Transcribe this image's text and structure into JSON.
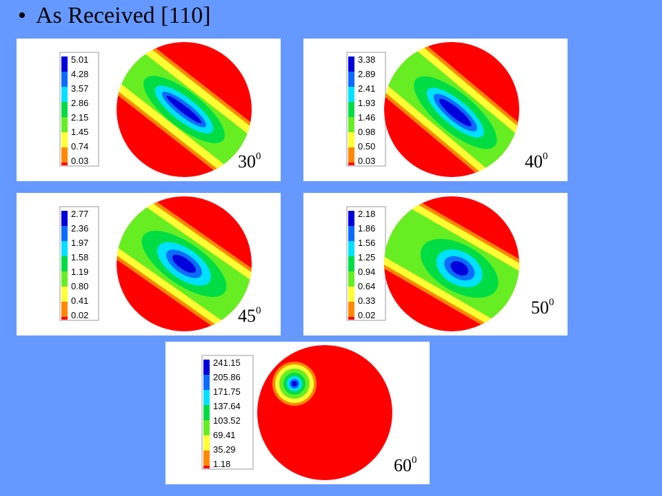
{
  "slide": {
    "bullet": "•",
    "title": "As Received [110]"
  },
  "colors": {
    "background": "#6699ff",
    "scale": [
      "#0000dd",
      "#0b6cff",
      "#00e0ff",
      "#00dd44",
      "#66ee22",
      "#ffff33",
      "#ff8800",
      "#ff0000"
    ]
  },
  "panels": [
    {
      "id": "p30",
      "legend": [
        "5.01",
        "4.28",
        "3.57",
        "2.86",
        "2.15",
        "1.45",
        "0.74",
        "0.03"
      ],
      "angle": "30",
      "angle_sup": "0"
    },
    {
      "id": "p40",
      "legend": [
        "3.38",
        "2.89",
        "2.41",
        "1.93",
        "1.46",
        "0.98",
        "0.50",
        "0.03"
      ],
      "angle": "40",
      "angle_sup": "0"
    },
    {
      "id": "p45",
      "legend": [
        "2.77",
        "2.36",
        "1.97",
        "1.58",
        "1.19",
        "0.80",
        "0.41",
        "0.02"
      ],
      "angle": "45",
      "angle_sup": "0"
    },
    {
      "id": "p50",
      "legend": [
        "2.18",
        "1.86",
        "1.56",
        "1.25",
        "0.94",
        "0.64",
        "0.33",
        "0.02"
      ],
      "angle": "50",
      "angle_sup": "0"
    },
    {
      "id": "p60",
      "legend": [
        "241.15",
        "205.86",
        "171.75",
        "137.64",
        "103.52",
        "69.41",
        "35.29",
        "1.18"
      ],
      "angle": "60",
      "angle_sup": "0"
    }
  ]
}
